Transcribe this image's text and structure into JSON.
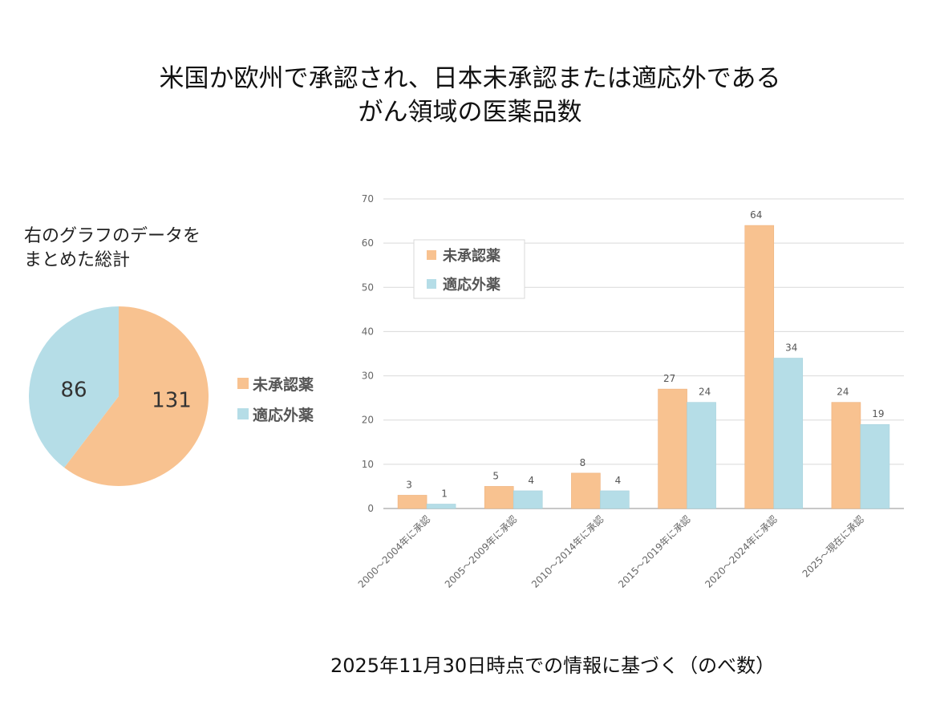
{
  "title": {
    "line1": "米国か欧州で承認され、日本未承認または適応外である",
    "line2": "がん領域の医薬品数"
  },
  "summary_label": {
    "line1": "右のグラフのデータを",
    "line2": "まとめた総計"
  },
  "footer": "2025年11月30日時点での情報に基づく（のべ数）",
  "colors": {
    "unapproved": "#F8C290",
    "offlabel": "#B5DDE7"
  },
  "chart_data": [
    {
      "type": "pie",
      "labels": [
        "未承認薬",
        "適応外薬"
      ],
      "values": [
        131,
        86
      ],
      "data_labels": [
        "131",
        "86"
      ],
      "legend": "right"
    },
    {
      "type": "bar",
      "categories": [
        "2000～2004年に承認",
        "2005～2009年に承認",
        "2010～2014年に承認",
        "2015～2019年に承認",
        "2020～2024年に承認",
        "2025～現在に承認"
      ],
      "series": [
        {
          "name": "未承認薬",
          "values": [
            3,
            5,
            8,
            27,
            64,
            24
          ]
        },
        {
          "name": "適応外薬",
          "values": [
            1,
            4,
            4,
            24,
            34,
            19
          ]
        }
      ],
      "ylim": [
        0,
        70
      ],
      "yticks": [
        "0",
        "10",
        "20",
        "30",
        "40",
        "50",
        "60",
        "70"
      ],
      "grid": true,
      "legend": "top-left"
    }
  ]
}
